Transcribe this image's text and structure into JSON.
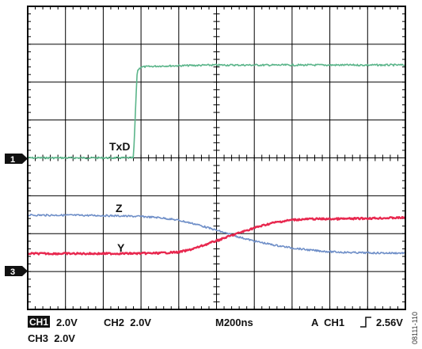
{
  "chart_data": {
    "type": "line",
    "x_unit": "ns",
    "y_unit": "V",
    "xlim": [
      0,
      2000
    ],
    "grid": true,
    "series": [
      {
        "name": "TxD",
        "color": "#5bb58a",
        "x": [
          0,
          200,
          400,
          560,
          580,
          600,
          700,
          1000,
          1500,
          2000
        ],
        "y": [
          0.0,
          0.0,
          0.0,
          0.0,
          4.6,
          4.8,
          4.85,
          4.9,
          4.9,
          4.9
        ]
      },
      {
        "name": "Z",
        "color": "#6f8fc8",
        "x": [
          0,
          200,
          400,
          600,
          700,
          800,
          900,
          1000,
          1100,
          1200,
          1300,
          1400,
          1500,
          1600,
          1700,
          1800,
          1900,
          2000
        ],
        "y": [
          2.95,
          2.95,
          2.93,
          2.88,
          2.82,
          2.68,
          2.45,
          2.15,
          1.85,
          1.58,
          1.38,
          1.22,
          1.1,
          1.02,
          0.98,
          0.96,
          0.95,
          0.95
        ]
      },
      {
        "name": "Y",
        "color": "#e8284f",
        "x": [
          0,
          200,
          400,
          600,
          700,
          800,
          850,
          900,
          1000,
          1100,
          1200,
          1300,
          1400,
          1500,
          1600,
          1700,
          1800,
          1900,
          2000
        ],
        "y": [
          0.92,
          0.92,
          0.92,
          0.93,
          0.95,
          1.0,
          1.1,
          1.25,
          1.6,
          1.95,
          2.28,
          2.55,
          2.7,
          2.75,
          2.75,
          2.76,
          2.78,
          2.8,
          2.82
        ]
      }
    ],
    "trace_labels": [
      "TxD",
      "Z",
      "Y"
    ],
    "channel_markers": [
      "1",
      "3"
    ],
    "readout": {
      "ch1_badge": "CH1",
      "ch1_scale": "2.0V",
      "ch2": "CH2  2.0V",
      "timebase": "M200ns",
      "trigger": "A  CH1",
      "trigger_level": "2.56V",
      "ch3": "CH3  2.0V"
    },
    "figure_id": "08111-110"
  }
}
